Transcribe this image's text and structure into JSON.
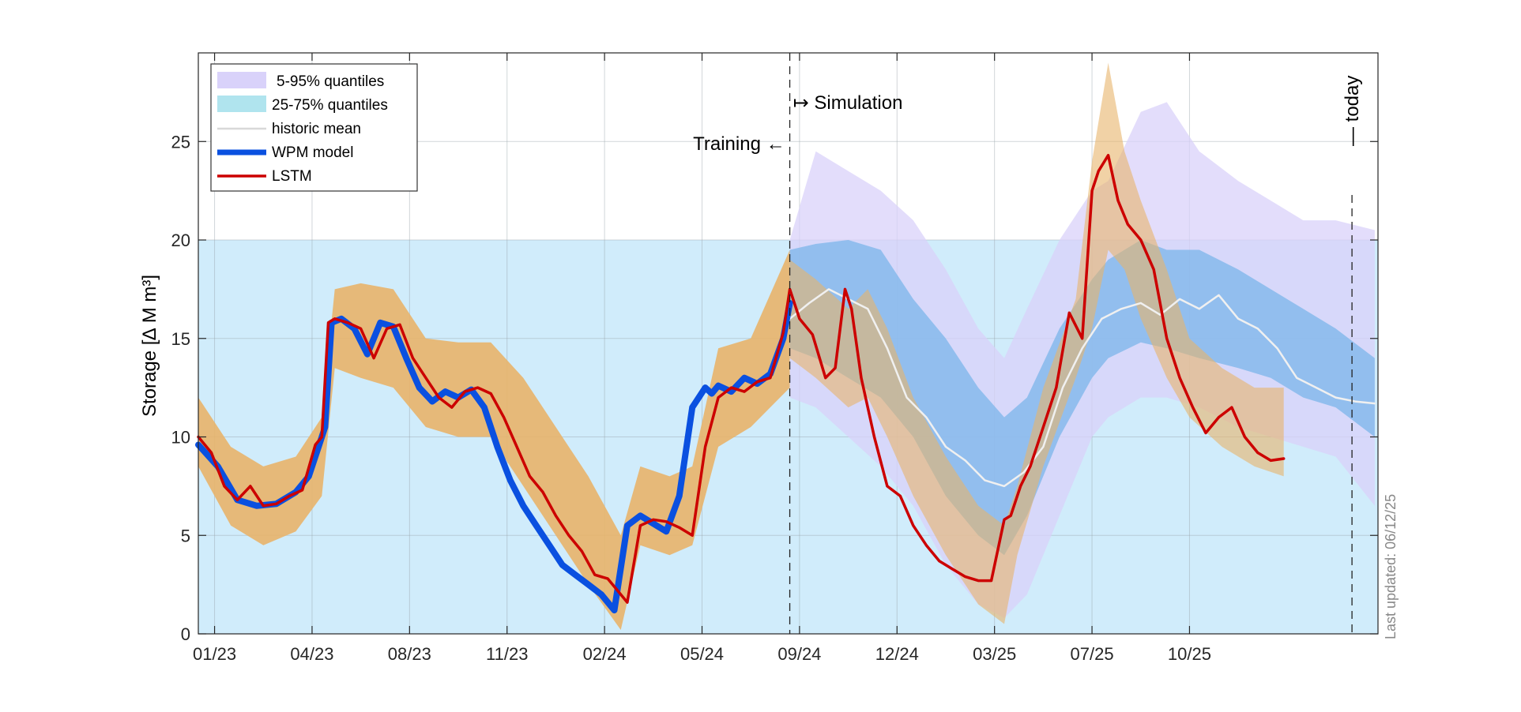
{
  "chart_data": {
    "type": "line",
    "ylabel": "Storage [∆ M m³]",
    "xlabel": "",
    "ylim": [
      0,
      29.5
    ],
    "yticks": [
      0,
      5,
      10,
      15,
      20,
      25
    ],
    "x_range_months": [
      0,
      36.3
    ],
    "x_tick_labels": [
      "01/23",
      "04/23",
      "08/23",
      "11/23",
      "02/24",
      "05/24",
      "09/24",
      "12/24",
      "03/25",
      "07/25",
      "10/25"
    ],
    "x_tick_positions_months": [
      0.5,
      3.5,
      6.5,
      9.5,
      12.5,
      15.5,
      18.5,
      21.5,
      24.5,
      27.5,
      30.5
    ],
    "grid": true,
    "reference_band": {
      "from": 0,
      "to": 20,
      "color": "#d0ecfb"
    },
    "annotations": {
      "training": "Training ←",
      "simulation": "↦ Simulation",
      "today": "— today",
      "last_updated": "Last updated: 06/12/25",
      "training_end_month": 18.2,
      "today_month": 35.5
    },
    "legend": {
      "placement": "top-left",
      "entries": [
        {
          "label": "5-95% quantiles",
          "color": "#d9d2fa"
        },
        {
          "label": "25-75% quantiles",
          "color": "#b0e4ee"
        },
        {
          "label": "historic mean",
          "color": "#d8d8d8"
        },
        {
          "label": "WPM model",
          "color": "#0a50e0"
        },
        {
          "label": "LSTM",
          "color": "#cc0000"
        }
      ]
    },
    "series": [
      {
        "name": "WPM model",
        "color": "#0a50e0",
        "x": [
          0,
          0.6,
          1.2,
          1.8,
          2.4,
          3.0,
          3.4,
          3.7,
          3.9,
          4.1,
          4.4,
          4.8,
          5.2,
          5.6,
          6.0,
          6.4,
          6.8,
          7.2,
          7.6,
          8.0,
          8.4,
          8.8,
          9.2,
          9.6,
          10.0,
          10.4,
          10.8,
          11.2,
          11.6,
          12.0,
          12.4,
          12.8,
          13.2,
          13.6,
          13.8,
          14.0,
          14.4,
          14.8,
          15.2,
          15.6,
          15.8,
          16.0,
          16.4,
          16.8,
          17.2,
          17.6,
          18.0,
          18.2
        ],
        "y": [
          9.6,
          8.5,
          6.8,
          6.5,
          6.6,
          7.2,
          8.0,
          9.5,
          10.5,
          15.8,
          16.0,
          15.5,
          14.2,
          15.8,
          15.6,
          14.0,
          12.5,
          11.8,
          12.3,
          12.0,
          12.4,
          11.5,
          9.5,
          7.8,
          6.5,
          5.5,
          4.5,
          3.5,
          3.0,
          2.5,
          2.0,
          1.2,
          5.5,
          6.0,
          5.8,
          5.6,
          5.2,
          7.0,
          11.5,
          12.5,
          12.2,
          12.6,
          12.3,
          13.0,
          12.7,
          13.2,
          15.0,
          16.8
        ]
      },
      {
        "name": "LSTM",
        "color": "#cc0000",
        "x": [
          0,
          0.4,
          0.8,
          1.2,
          1.6,
          2.0,
          2.4,
          2.8,
          3.2,
          3.6,
          3.8,
          4.0,
          4.2,
          4.6,
          5.0,
          5.4,
          5.8,
          6.2,
          6.6,
          7.0,
          7.4,
          7.8,
          8.2,
          8.6,
          9.0,
          9.4,
          9.8,
          10.2,
          10.6,
          11.0,
          11.4,
          11.8,
          12.2,
          12.6,
          13.2,
          13.6,
          14.0,
          14.4,
          14.8,
          15.2,
          15.6,
          16.0,
          16.4,
          16.8,
          17.2,
          17.6,
          18.0,
          18.2,
          18.5,
          18.9,
          19.3,
          19.6,
          19.9,
          20.1,
          20.4,
          20.8,
          21.2,
          21.6,
          22.0,
          22.4,
          22.8,
          23.2,
          23.6,
          24.0,
          24.4,
          24.8,
          25.0,
          25.3,
          25.6,
          26.0,
          26.4,
          26.8,
          27.2,
          27.5,
          27.7,
          28.0,
          28.3,
          28.6,
          29.0,
          29.4,
          29.8,
          30.2,
          30.6,
          31.0,
          31.4,
          31.8,
          32.2,
          32.6,
          33.0,
          33.4
        ],
        "y": [
          10.0,
          9.2,
          7.5,
          6.8,
          7.5,
          6.5,
          6.6,
          7.0,
          7.3,
          9.6,
          10.0,
          15.8,
          16.0,
          15.8,
          15.5,
          14.0,
          15.5,
          15.7,
          14.0,
          13.0,
          12.0,
          11.5,
          12.3,
          12.5,
          12.2,
          11.0,
          9.5,
          8.0,
          7.2,
          6.0,
          5.0,
          4.2,
          3.0,
          2.8,
          1.6,
          5.5,
          5.8,
          5.7,
          5.4,
          5.0,
          9.5,
          12.0,
          12.5,
          12.3,
          12.8,
          13.0,
          15.3,
          17.5,
          16.0,
          15.2,
          13.0,
          13.5,
          17.5,
          16.5,
          13.0,
          10.0,
          7.5,
          7.0,
          5.5,
          4.5,
          3.7,
          3.3,
          2.9,
          2.7,
          2.7,
          5.8,
          6.0,
          7.5,
          8.5,
          10.5,
          12.5,
          16.3,
          15.0,
          22.5,
          23.5,
          24.3,
          22.0,
          20.8,
          20.0,
          18.5,
          15.0,
          13.0,
          11.5,
          10.2,
          11.0,
          11.5,
          10.0,
          9.2,
          8.8,
          8.9
        ]
      },
      {
        "name": "historic mean",
        "color": "#f0f0f0",
        "x": [
          18.2,
          18.8,
          19.4,
          20.0,
          20.6,
          21.2,
          21.8,
          22.4,
          23.0,
          23.6,
          24.2,
          24.8,
          25.4,
          26.0,
          26.6,
          27.2,
          27.8,
          28.4,
          29.0,
          29.6,
          30.2,
          30.8,
          31.4,
          32.0,
          32.6,
          33.2,
          33.8,
          34.4,
          35.0,
          35.6,
          36.2
        ],
        "y": [
          16.0,
          16.8,
          17.5,
          17.0,
          16.5,
          14.5,
          12.0,
          11.0,
          9.5,
          8.8,
          7.8,
          7.5,
          8.2,
          9.5,
          12.5,
          14.5,
          16.0,
          16.5,
          16.8,
          16.2,
          17.0,
          16.5,
          17.2,
          16.0,
          15.5,
          14.5,
          13.0,
          12.5,
          12.0,
          11.8,
          11.7
        ]
      }
    ],
    "bands": [
      {
        "name": "LSTM 5-95% (training)",
        "color": "#e8b46a",
        "x": [
          0,
          1.0,
          2.0,
          3.0,
          3.8,
          4.2,
          5.0,
          6.0,
          7.0,
          8.0,
          9.0,
          10.0,
          11.0,
          12.0,
          13.0,
          13.6,
          14.5,
          15.2,
          16.0,
          17.0,
          18.2
        ],
        "lower": [
          8.5,
          5.5,
          4.5,
          5.2,
          7.0,
          13.5,
          13.0,
          12.5,
          10.5,
          10.0,
          10.0,
          7.5,
          5.0,
          2.5,
          0.2,
          4.5,
          4.0,
          4.5,
          9.5,
          10.5,
          12.5
        ],
        "upper": [
          12.0,
          9.5,
          8.5,
          9.0,
          11.0,
          17.5,
          17.8,
          17.5,
          15.0,
          14.8,
          14.8,
          13.0,
          10.5,
          8.0,
          5.0,
          8.5,
          8.0,
          8.5,
          14.5,
          15.0,
          19.5
        ]
      },
      {
        "name": "5-95% quantiles",
        "color": "#d9d2fa",
        "x": [
          18.2,
          19.0,
          20.0,
          21.0,
          22.0,
          23.0,
          24.0,
          24.8,
          25.5,
          26.5,
          27.5,
          28.0,
          29.0,
          29.8,
          30.8,
          32.0,
          33.0,
          34.0,
          35.0,
          36.2
        ],
        "lower": [
          12.0,
          11.5,
          10.0,
          8.5,
          6.5,
          3.5,
          1.5,
          0.8,
          2.0,
          6.0,
          10.0,
          11.0,
          12.0,
          12.0,
          11.5,
          10.5,
          10.0,
          9.5,
          9.0,
          6.5
        ],
        "upper": [
          20.0,
          24.5,
          23.5,
          22.5,
          21.0,
          18.5,
          15.5,
          14.0,
          16.5,
          20.0,
          22.5,
          23.0,
          26.5,
          27.0,
          24.5,
          23.0,
          22.0,
          21.0,
          21.0,
          20.5
        ]
      },
      {
        "name": "25-75% quantiles",
        "color": "#7bb6ea",
        "x": [
          18.2,
          19.0,
          20.0,
          21.0,
          22.0,
          23.0,
          24.0,
          24.8,
          25.5,
          26.5,
          27.5,
          28.0,
          29.0,
          29.8,
          30.8,
          32.0,
          33.0,
          34.0,
          35.0,
          36.2
        ],
        "lower": [
          14.5,
          14.0,
          13.0,
          12.0,
          10.0,
          7.0,
          5.0,
          4.0,
          6.0,
          10.0,
          13.0,
          14.0,
          14.8,
          14.5,
          14.0,
          13.5,
          13.0,
          12.0,
          11.5,
          10.0
        ],
        "upper": [
          19.5,
          19.8,
          20.0,
          19.5,
          17.0,
          15.0,
          12.5,
          11.0,
          12.0,
          15.5,
          18.0,
          19.0,
          20.0,
          19.5,
          19.5,
          18.5,
          17.5,
          16.5,
          15.5,
          14.0
        ]
      },
      {
        "name": "LSTM 5-95% (simulation)",
        "color": "#e8b46a",
        "x": [
          18.2,
          19.0,
          20.0,
          20.6,
          21.2,
          22.0,
          23.0,
          24.0,
          24.8,
          25.2,
          26.0,
          27.0,
          27.5,
          28.0,
          28.5,
          29.0,
          29.8,
          30.5,
          31.5,
          32.5,
          33.4
        ],
        "lower": [
          14.0,
          13.0,
          11.5,
          12.0,
          10.0,
          7.0,
          4.0,
          1.5,
          0.5,
          4.0,
          8.5,
          13.0,
          15.5,
          19.5,
          18.5,
          16.0,
          13.0,
          11.0,
          9.5,
          8.5,
          8.0
        ],
        "upper": [
          19.0,
          18.0,
          16.5,
          17.5,
          15.5,
          12.0,
          9.0,
          6.5,
          5.5,
          7.5,
          12.5,
          17.0,
          24.0,
          29.0,
          24.5,
          22.0,
          18.5,
          15.0,
          13.5,
          12.5,
          12.5
        ]
      }
    ]
  }
}
